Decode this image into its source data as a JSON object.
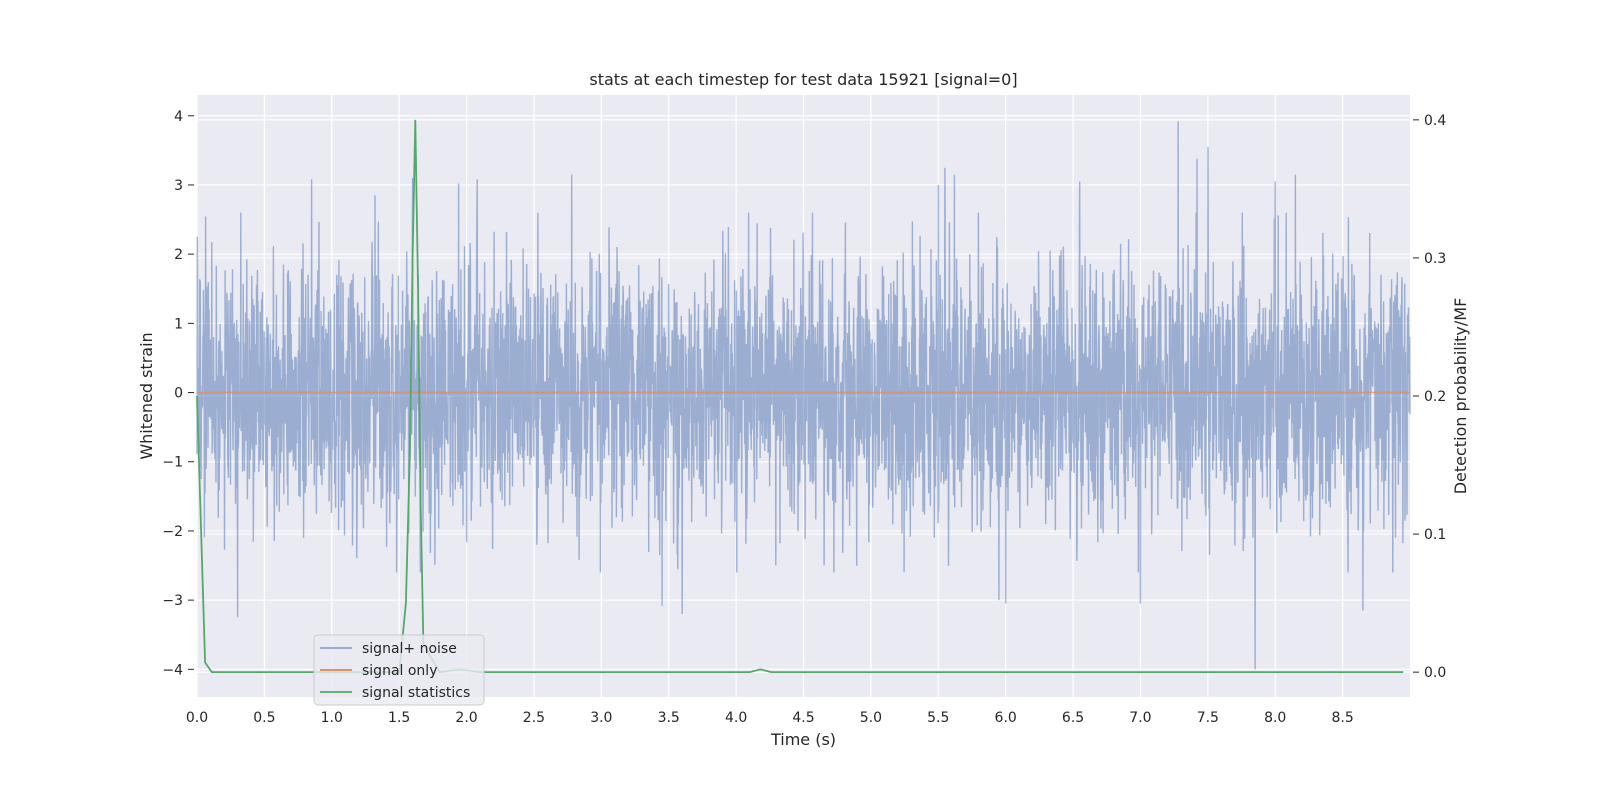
{
  "chart_data": {
    "type": "line",
    "title": "stats at each timestep for test data 15921 [signal=0]",
    "xlabel": "Time (s)",
    "ylabel": "Whitened strain",
    "y2label": "Detection probability/MF",
    "xlim": [
      0.0,
      9.0
    ],
    "ylim": [
      -4.4,
      4.3
    ],
    "y2lim": [
      -0.018,
      0.418
    ],
    "xticks": [
      "0.0",
      "0.5",
      "1.0",
      "1.5",
      "2.0",
      "2.5",
      "3.0",
      "3.5",
      "4.0",
      "4.5",
      "5.0",
      "5.5",
      "6.0",
      "6.5",
      "7.0",
      "7.5",
      "8.0",
      "8.5"
    ],
    "yticks": [
      "−4",
      "−3",
      "−2",
      "−1",
      "0",
      "1",
      "2",
      "3",
      "4"
    ],
    "y2ticks": [
      "0.0",
      "0.1",
      "0.2",
      "0.3",
      "0.4"
    ],
    "grid": true,
    "background": "#eaeaf2",
    "legend_location": "lower left",
    "series": [
      {
        "name": "signal+ noise",
        "axis": "left",
        "color": "#4c72b0",
        "description": "dense whitened strain noise, 4096 samples over 9 s, roughly within ±2.5 with spikes up to 3.9",
        "sample_rate": 455,
        "spikes": [
          {
            "x": 0.3,
            "y": -3.25
          },
          {
            "x": 0.85,
            "y": 3.08
          },
          {
            "x": 1.32,
            "y": 2.85
          },
          {
            "x": 1.6,
            "y": 3.1
          },
          {
            "x": 1.94,
            "y": 3.02
          },
          {
            "x": 2.08,
            "y": 3.08
          },
          {
            "x": 2.78,
            "y": 3.15
          },
          {
            "x": 3.45,
            "y": -3.08
          },
          {
            "x": 3.6,
            "y": -3.2
          },
          {
            "x": 5.5,
            "y": 3.0
          },
          {
            "x": 5.55,
            "y": 3.25
          },
          {
            "x": 5.62,
            "y": 3.15
          },
          {
            "x": 5.95,
            "y": -3.0
          },
          {
            "x": 6.0,
            "y": -3.05
          },
          {
            "x": 6.55,
            "y": 3.05
          },
          {
            "x": 7.0,
            "y": -3.05
          },
          {
            "x": 7.28,
            "y": 3.92
          },
          {
            "x": 7.42,
            "y": 3.38
          },
          {
            "x": 7.5,
            "y": 3.55
          },
          {
            "x": 7.85,
            "y": -4.0
          },
          {
            "x": 8.0,
            "y": 3.05
          },
          {
            "x": 8.15,
            "y": 3.15
          },
          {
            "x": 8.65,
            "y": -3.15
          }
        ]
      },
      {
        "name": "signal only",
        "axis": "left",
        "color": "#dd8452",
        "x": [
          0.0,
          9.0
        ],
        "y": [
          0.0,
          0.0
        ]
      },
      {
        "name": "signal statistics",
        "axis": "right",
        "color": "#55a868",
        "x": [
          0.0,
          0.06,
          0.11,
          0.2,
          1.5,
          1.55,
          1.58,
          1.6,
          1.62,
          1.64,
          1.66,
          1.68,
          1.8,
          1.95,
          2.1,
          4.1,
          4.18,
          4.26,
          8.95
        ],
        "y": [
          0.2,
          0.007,
          0.0,
          0.0,
          0.0,
          0.05,
          0.16,
          0.3,
          0.4,
          0.28,
          0.12,
          0.02,
          0.0,
          0.002,
          0.0,
          0.0,
          0.002,
          0.0,
          0.0
        ]
      }
    ]
  }
}
